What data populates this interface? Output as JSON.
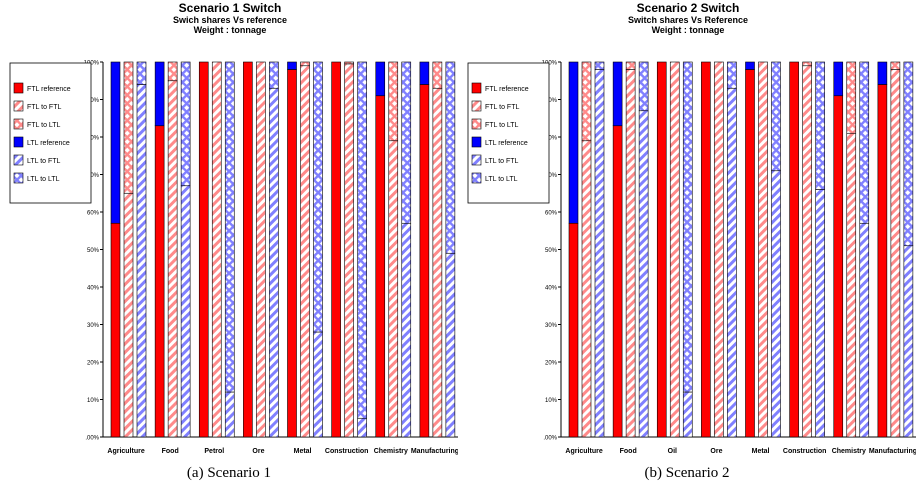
{
  "colors": {
    "ftl": "#ff0000",
    "ftl_light": "#ff8a8a",
    "ltl": "#0000ff",
    "ltl_light": "#8080ff"
  },
  "chart_data": [
    {
      "type": "bar",
      "stacked": true,
      "title": "Scenario 1 Switch",
      "subtitle": "Swich shares Vs reference",
      "subtitle2": "Weight : tonnage",
      "caption": "(a) Scenario 1",
      "ylim": [
        0,
        100
      ],
      "yticks": [
        ".00%",
        "10%",
        "20%",
        "30%",
        "40%",
        "50%",
        "60%",
        "70%",
        "80%",
        "90%",
        "100%"
      ],
      "categories": [
        "Agriculture",
        "Food",
        "Petrol",
        "Ore",
        "Metal",
        "Construction",
        "Chemistry",
        "Manufacturing"
      ],
      "legend": [
        "FTL reference",
        "FTL to FTL",
        "FTL to LTL",
        "LTL reference",
        "LTL to FTL",
        "LTL to LTL"
      ],
      "legend_position": "left",
      "grid": false,
      "groups": [
        {
          "name": "reference",
          "parts": [
            "FTL reference",
            "LTL reference"
          ],
          "values": [
            [
              57,
              43
            ],
            [
              83,
              17
            ],
            [
              100,
              0
            ],
            [
              100,
              0
            ],
            [
              98,
              2
            ],
            [
              100,
              0
            ],
            [
              91,
              9
            ],
            [
              94,
              6
            ]
          ]
        },
        {
          "name": "FTL",
          "parts": [
            "FTL to FTL",
            "FTL to LTL"
          ],
          "values": [
            [
              65,
              35
            ],
            [
              95,
              5
            ],
            [
              100,
              0
            ],
            [
              100,
              0
            ],
            [
              99,
              1
            ],
            [
              99.5,
              0.5
            ],
            [
              79,
              21
            ],
            [
              93,
              7
            ]
          ]
        },
        {
          "name": "LTL",
          "parts": [
            "LTL to FTL",
            "LTL to LTL"
          ],
          "values": [
            [
              94,
              6
            ],
            [
              67,
              33
            ],
            [
              12,
              88
            ],
            [
              93,
              7
            ],
            [
              28,
              72
            ],
            [
              5,
              95
            ],
            [
              57,
              43
            ],
            [
              49,
              51
            ]
          ]
        }
      ]
    },
    {
      "type": "bar",
      "stacked": true,
      "title": "Scenario 2 Switch",
      "subtitle": "Switch shares Vs Reference",
      "subtitle2": "Weight : tonnage",
      "caption": "(b) Scenario 2",
      "ylim": [
        0,
        100
      ],
      "yticks": [
        ".00%",
        "10%",
        "20%",
        "30%",
        "40%",
        "50%",
        "60%",
        "70%",
        "80%",
        "90%",
        "100%"
      ],
      "categories": [
        "Agriculture",
        "Food",
        "Oil",
        "Ore",
        "Metal",
        "Construction",
        "Chemistry",
        "Manufacturing"
      ],
      "legend": [
        "FTL reference",
        "FTL to FTL",
        "FTL to LTL",
        "LTL reference",
        "LTL to FTL",
        "LTL to LTL"
      ],
      "legend_position": "left",
      "grid": false,
      "groups": [
        {
          "name": "reference",
          "parts": [
            "FTL reference",
            "LTL reference"
          ],
          "values": [
            [
              57,
              43
            ],
            [
              83,
              17
            ],
            [
              100,
              0
            ],
            [
              100,
              0
            ],
            [
              98,
              2
            ],
            [
              100,
              0
            ],
            [
              91,
              9
            ],
            [
              94,
              6
            ]
          ]
        },
        {
          "name": "FTL",
          "parts": [
            "FTL to FTL",
            "FTL to LTL"
          ],
          "values": [
            [
              79,
              21
            ],
            [
              98,
              2
            ],
            [
              100,
              0
            ],
            [
              100,
              0
            ],
            [
              100,
              0
            ],
            [
              99,
              1
            ],
            [
              81,
              19
            ],
            [
              98,
              2
            ]
          ]
        },
        {
          "name": "LTL",
          "parts": [
            "LTL to FTL",
            "LTL to LTL"
          ],
          "values": [
            [
              98,
              2
            ],
            [
              87,
              13
            ],
            [
              12,
              88
            ],
            [
              93,
              7
            ],
            [
              71,
              29
            ],
            [
              66,
              34
            ],
            [
              57,
              43
            ],
            [
              51,
              49
            ]
          ]
        }
      ]
    }
  ]
}
